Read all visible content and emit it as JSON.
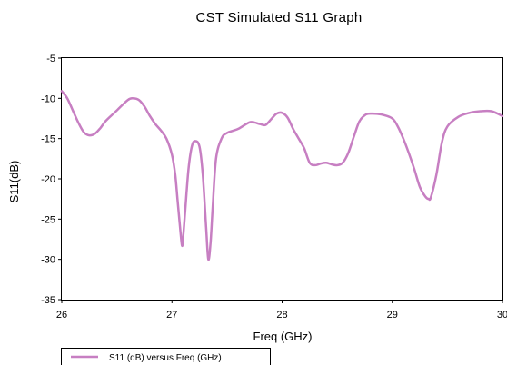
{
  "chart_data": {
    "type": "line",
    "title": "CST Simulated S11 Graph",
    "xlabel": "Freq (GHz)",
    "ylabel": "S11(dB)",
    "xlim": [
      26,
      30
    ],
    "ylim": [
      -35,
      -5
    ],
    "xticks": [
      26,
      27,
      28,
      29,
      30
    ],
    "yticks": [
      -35,
      -30,
      -25,
      -20,
      -15,
      -10,
      -5
    ],
    "grid": false,
    "legend_position": "bottom-left",
    "series": [
      {
        "name": "S11 (dB) versus Freq (GHz)",
        "color": "#c77fc2",
        "x": [
          26.0,
          26.05,
          26.1,
          26.15,
          26.2,
          26.25,
          26.3,
          26.35,
          26.4,
          26.5,
          26.6,
          26.65,
          26.7,
          26.75,
          26.8,
          26.85,
          26.9,
          26.95,
          27.0,
          27.03,
          27.05,
          27.07,
          27.09,
          27.1,
          27.12,
          27.15,
          27.18,
          27.21,
          27.25,
          27.28,
          27.31,
          27.33,
          27.35,
          27.37,
          27.4,
          27.45,
          27.5,
          27.6,
          27.7,
          27.75,
          27.8,
          27.85,
          27.9,
          27.95,
          28.0,
          28.05,
          28.1,
          28.15,
          28.2,
          28.25,
          28.3,
          28.35,
          28.4,
          28.45,
          28.5,
          28.55,
          28.6,
          28.65,
          28.7,
          28.75,
          28.8,
          28.9,
          29.0,
          29.05,
          29.1,
          29.15,
          29.2,
          29.25,
          29.3,
          29.33,
          29.35,
          29.4,
          29.45,
          29.5,
          29.6,
          29.7,
          29.8,
          29.9,
          30.0
        ],
        "y": [
          -9.1,
          -10.0,
          -11.5,
          -13.0,
          -14.2,
          -14.6,
          -14.4,
          -13.7,
          -12.8,
          -11.5,
          -10.2,
          -10.0,
          -10.2,
          -11.0,
          -12.2,
          -13.2,
          -14.0,
          -15.0,
          -17.0,
          -19.5,
          -22.5,
          -25.5,
          -28.2,
          -27.5,
          -24.0,
          -18.8,
          -16.0,
          -15.3,
          -16.0,
          -19.5,
          -26.0,
          -30.0,
          -28.0,
          -23.5,
          -17.5,
          -15.0,
          -14.3,
          -13.8,
          -13.0,
          -13.0,
          -13.2,
          -13.3,
          -12.6,
          -11.9,
          -11.8,
          -12.4,
          -13.8,
          -15.0,
          -16.2,
          -18.0,
          -18.3,
          -18.1,
          -18.0,
          -18.2,
          -18.3,
          -18.0,
          -16.8,
          -14.8,
          -12.9,
          -12.1,
          -11.9,
          -12.0,
          -12.5,
          -13.5,
          -15.0,
          -16.8,
          -18.8,
          -21.0,
          -22.2,
          -22.5,
          -22.3,
          -19.5,
          -15.5,
          -13.5,
          -12.3,
          -11.8,
          -11.6,
          -11.6,
          -12.2
        ]
      }
    ]
  }
}
